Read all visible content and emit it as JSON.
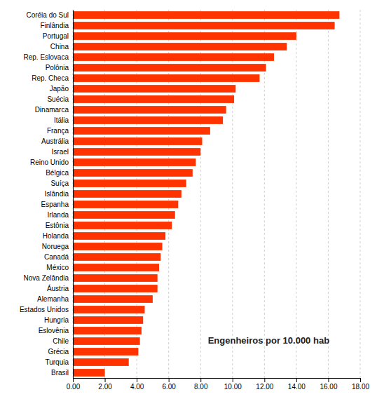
{
  "chart_data": {
    "type": "bar",
    "orientation": "horizontal",
    "categories": [
      "Coréia do Sul",
      "Finlândia",
      "Portugal",
      "China",
      "Rep. Eslovaca",
      "Polônia",
      "Rep. Checa",
      "Japão",
      "Suécia",
      "Dinamarca",
      "Itália",
      "França",
      "Austrália",
      "Israel",
      "Reino Unido",
      "Bélgica",
      "Suíça",
      "Islândia",
      "Espanha",
      "Irlanda",
      "Estônia",
      "Holanda",
      "Noruega",
      "Canadá",
      "México",
      "Nova Zelândia",
      "Áustria",
      "Alemanha",
      "Estados Unidos",
      "Hungria",
      "Eslovênia",
      "Chile",
      "Grécia",
      "Turquia",
      "Brasil"
    ],
    "values": [
      16.7,
      16.4,
      14.0,
      13.4,
      12.6,
      12.1,
      11.7,
      10.2,
      10.1,
      9.6,
      9.4,
      8.6,
      8.1,
      8.0,
      7.7,
      7.5,
      7.1,
      6.8,
      6.6,
      6.4,
      6.2,
      5.8,
      5.6,
      5.5,
      5.4,
      5.3,
      5.3,
      5.0,
      4.5,
      4.4,
      4.3,
      4.2,
      4.1,
      3.5,
      2.0
    ],
    "color": "#FF3300",
    "xlim": [
      0,
      18.0
    ],
    "xticks": [
      {
        "value": 0.0,
        "label": "0.00"
      },
      {
        "value": 2.0,
        "label": "2.00"
      },
      {
        "value": 4.0,
        "label": "4.00"
      },
      {
        "value": 6.0,
        "label": "6.00"
      },
      {
        "value": 8.0,
        "label": "8.00"
      },
      {
        "value": 10.0,
        "label": "10.00"
      },
      {
        "value": 12.0,
        "label": "12.00"
      },
      {
        "value": 14.0,
        "label": "14.00"
      },
      {
        "value": 16.0,
        "label": "16.00"
      },
      {
        "value": 18.0,
        "label": "18.00"
      }
    ],
    "grid": true,
    "annotation": "Engenheiros por 10.000 hab"
  }
}
